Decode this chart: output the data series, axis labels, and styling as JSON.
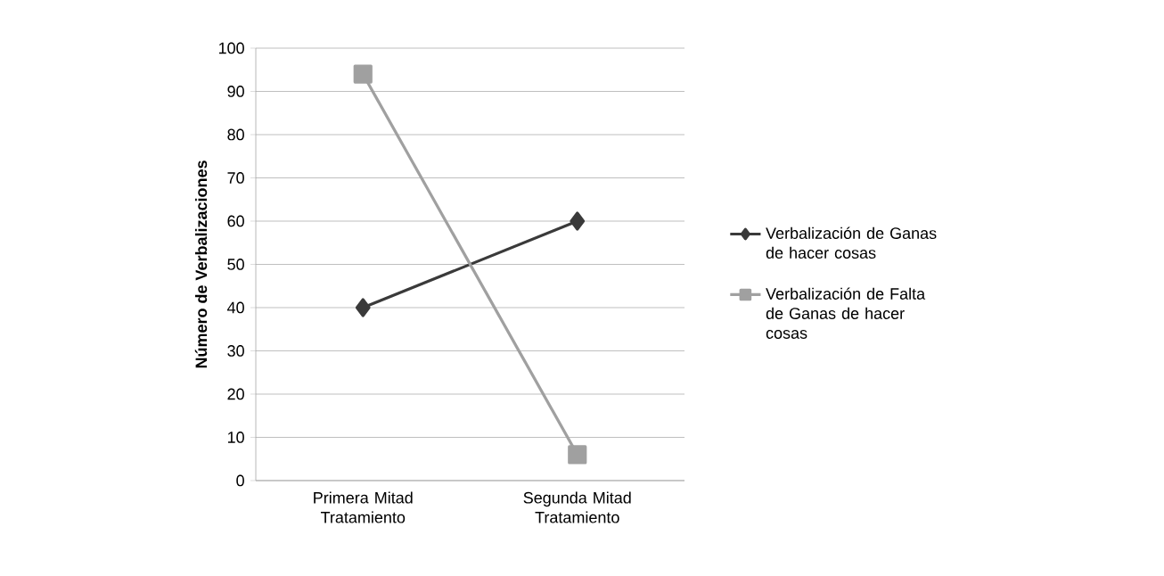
{
  "chart_data": {
    "type": "line",
    "ylabel": "Número de Verbalizaciones",
    "categories": [
      "Primera Mitad Tratamiento",
      "Segunda Mitad Tratamiento"
    ],
    "series": [
      {
        "name": "Verbalización de Ganas de hacer cosas",
        "color": "#3a3a3a",
        "values": [
          40,
          60
        ],
        "marker": "diamond"
      },
      {
        "name": "Verbalización de Falta de Ganas de hacer cosas",
        "color": "#a0a0a0",
        "values": [
          94,
          6
        ],
        "marker": "square"
      }
    ],
    "ylim": [
      0,
      100
    ],
    "yticks": [
      0,
      10,
      20,
      30,
      40,
      50,
      60,
      70,
      80,
      90,
      100
    ],
    "grid": "y",
    "legend": "right",
    "line_style": "solid"
  }
}
